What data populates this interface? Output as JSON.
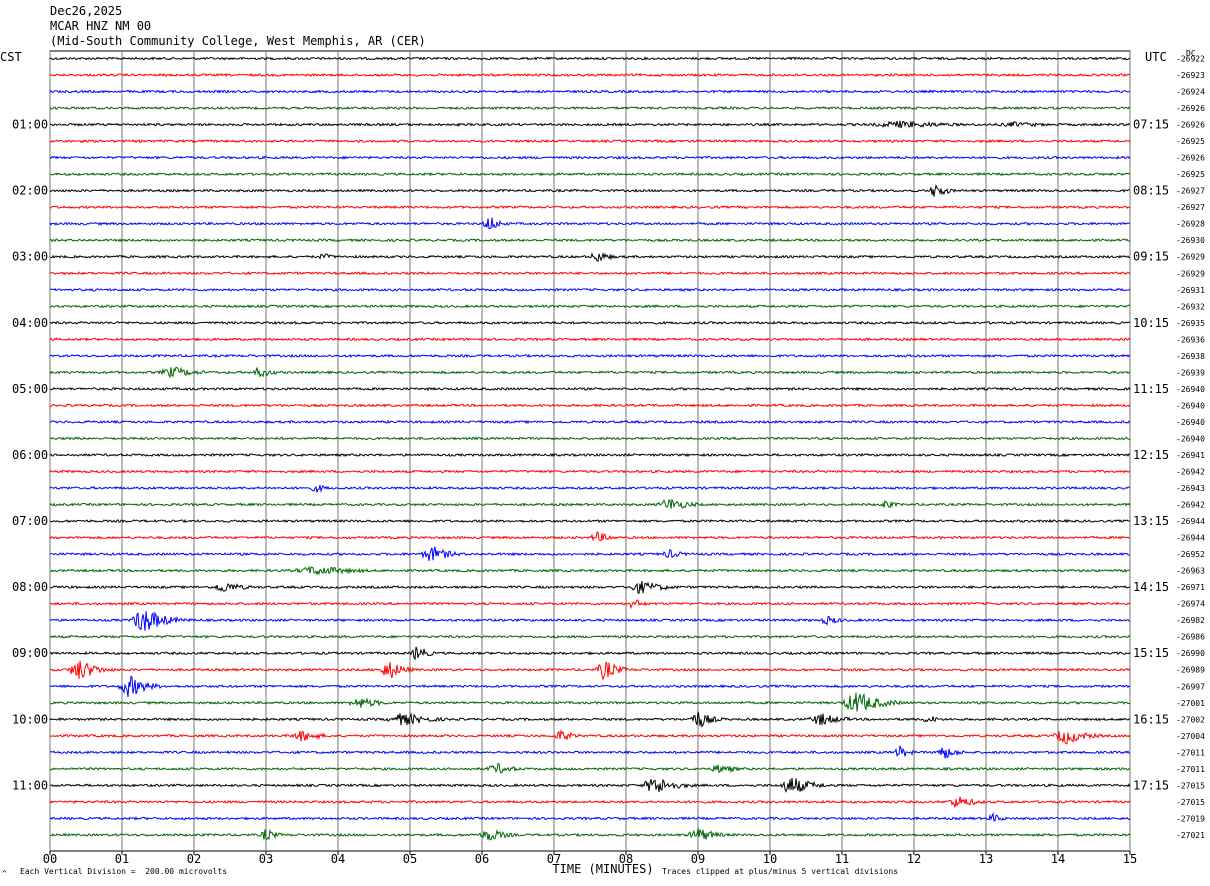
{
  "header": {
    "date": "Dec26,2025",
    "station": "MCAR HNZ NM 00",
    "location": "(Mid-South Community College, West Memphis, AR (CER)"
  },
  "left_label": "CST",
  "right_label": "UTC",
  "dc_label": "DC",
  "footer": {
    "scale_note": "Each Vertical Division =  200.00 microvolts",
    "clip_note": "Traces clipped at plus/minus 5 vertical divisions",
    "corner_mark": "^"
  },
  "chart_data": {
    "type": "line",
    "title": "",
    "xlabel": "TIME (MINUTES)",
    "ylabel": "",
    "xlim": [
      0,
      15
    ],
    "x_ticks": [
      "00",
      "01",
      "02",
      "03",
      "04",
      "05",
      "06",
      "07",
      "08",
      "09",
      "10",
      "11",
      "12",
      "13",
      "14",
      "15"
    ],
    "trace_colors": [
      "#000000",
      "#ff0000",
      "#0000ff",
      "#006600"
    ],
    "left_time_labels": [
      {
        "trace": 4,
        "label": "01:00"
      },
      {
        "trace": 8,
        "label": "02:00"
      },
      {
        "trace": 12,
        "label": "03:00"
      },
      {
        "trace": 16,
        "label": "04:00"
      },
      {
        "trace": 20,
        "label": "05:00"
      },
      {
        "trace": 24,
        "label": "06:00"
      },
      {
        "trace": 28,
        "label": "07:00"
      },
      {
        "trace": 32,
        "label": "08:00"
      },
      {
        "trace": 36,
        "label": "09:00"
      },
      {
        "trace": 40,
        "label": "10:00"
      },
      {
        "trace": 44,
        "label": "11:00"
      }
    ],
    "right_time_labels": [
      {
        "trace": 4,
        "label": "07:15"
      },
      {
        "trace": 8,
        "label": "08:15"
      },
      {
        "trace": 12,
        "label": "09:15"
      },
      {
        "trace": 16,
        "label": "10:15"
      },
      {
        "trace": 20,
        "label": "11:15"
      },
      {
        "trace": 24,
        "label": "12:15"
      },
      {
        "trace": 28,
        "label": "13:15"
      },
      {
        "trace": 32,
        "label": "14:15"
      },
      {
        "trace": 36,
        "label": "15:15"
      },
      {
        "trace": 40,
        "label": "16:15"
      },
      {
        "trace": 44,
        "label": "17:15"
      }
    ],
    "dc_offsets": [
      "-26922",
      "-26923",
      "-26924",
      "-26926",
      "-26926",
      "-26925",
      "-26926",
      "-26925",
      "-26927",
      "-26927",
      "-26928",
      "-26930",
      "-26929",
      "-26929",
      "-26931",
      "-26932",
      "-26935",
      "-26936",
      "-26938",
      "-26939",
      "-26940",
      "-26940",
      "-26940",
      "-26940",
      "-26941",
      "-26942",
      "-26943",
      "-26942",
      "-26944",
      "-26944",
      "-26952",
      "-26963",
      "-26971",
      "-26974",
      "-26982",
      "-26986",
      "-26990",
      "-26989",
      "-26997",
      "-27001",
      "-27002",
      "-27004",
      "-27011",
      "-27011",
      "-27015",
      "-27015",
      "-27019",
      "-27021"
    ],
    "events": [
      {
        "trace": 4,
        "minute": 11.8,
        "amp": 4,
        "dur": 1.6
      },
      {
        "trace": 4,
        "minute": 13.4,
        "amp": 3,
        "dur": 1.0
      },
      {
        "trace": 8,
        "minute": 12.3,
        "amp": 9,
        "dur": 0.3
      },
      {
        "trace": 10,
        "minute": 6.1,
        "amp": 9,
        "dur": 0.3
      },
      {
        "trace": 12,
        "minute": 3.8,
        "amp": 4,
        "dur": 0.3
      },
      {
        "trace": 12,
        "minute": 7.6,
        "amp": 6,
        "dur": 0.4
      },
      {
        "trace": 19,
        "minute": 1.7,
        "amp": 6,
        "dur": 0.7
      },
      {
        "trace": 19,
        "minute": 2.9,
        "amp": 6,
        "dur": 0.4
      },
      {
        "trace": 26,
        "minute": 3.7,
        "amp": 5,
        "dur": 0.3
      },
      {
        "trace": 27,
        "minute": 8.6,
        "amp": 7,
        "dur": 0.6
      },
      {
        "trace": 27,
        "minute": 11.6,
        "amp": 5,
        "dur": 0.3
      },
      {
        "trace": 29,
        "minute": 7.6,
        "amp": 6,
        "dur": 0.4
      },
      {
        "trace": 30,
        "minute": 5.3,
        "amp": 9,
        "dur": 0.5
      },
      {
        "trace": 30,
        "minute": 8.6,
        "amp": 5,
        "dur": 0.4
      },
      {
        "trace": 31,
        "minute": 3.7,
        "amp": 5,
        "dur": 1.2
      },
      {
        "trace": 32,
        "minute": 2.4,
        "amp": 6,
        "dur": 0.6
      },
      {
        "trace": 32,
        "minute": 8.2,
        "amp": 7,
        "dur": 0.7
      },
      {
        "trace": 33,
        "minute": 8.1,
        "amp": 6,
        "dur": 0.3
      },
      {
        "trace": 34,
        "minute": 1.3,
        "amp": 14,
        "dur": 0.6
      },
      {
        "trace": 34,
        "minute": 10.8,
        "amp": 5,
        "dur": 0.4
      },
      {
        "trace": 36,
        "minute": 5.1,
        "amp": 9,
        "dur": 0.3
      },
      {
        "trace": 37,
        "minute": 0.4,
        "amp": 12,
        "dur": 0.5
      },
      {
        "trace": 37,
        "minute": 4.7,
        "amp": 11,
        "dur": 0.4
      },
      {
        "trace": 37,
        "minute": 7.7,
        "amp": 11,
        "dur": 0.4
      },
      {
        "trace": 38,
        "minute": 1.1,
        "amp": 12,
        "dur": 0.5
      },
      {
        "trace": 39,
        "minute": 4.3,
        "amp": 6,
        "dur": 0.6
      },
      {
        "trace": 39,
        "minute": 11.2,
        "amp": 12,
        "dur": 0.7
      },
      {
        "trace": 40,
        "minute": 4.9,
        "amp": 7,
        "dur": 0.8
      },
      {
        "trace": 40,
        "minute": 9.0,
        "amp": 10,
        "dur": 0.4
      },
      {
        "trace": 40,
        "minute": 10.7,
        "amp": 7,
        "dur": 0.6
      },
      {
        "trace": 40,
        "minute": 12.2,
        "amp": 5,
        "dur": 0.3
      },
      {
        "trace": 41,
        "minute": 3.5,
        "amp": 6,
        "dur": 0.6
      },
      {
        "trace": 41,
        "minute": 7.1,
        "amp": 6,
        "dur": 0.4
      },
      {
        "trace": 41,
        "minute": 14.1,
        "amp": 9,
        "dur": 0.6
      },
      {
        "trace": 42,
        "minute": 11.8,
        "amp": 7,
        "dur": 0.3
      },
      {
        "trace": 42,
        "minute": 12.4,
        "amp": 8,
        "dur": 0.4
      },
      {
        "trace": 43,
        "minute": 6.2,
        "amp": 6,
        "dur": 0.5
      },
      {
        "trace": 43,
        "minute": 9.3,
        "amp": 5,
        "dur": 0.5
      },
      {
        "trace": 44,
        "minute": 8.4,
        "amp": 10,
        "dur": 0.6
      },
      {
        "trace": 44,
        "minute": 10.3,
        "amp": 10,
        "dur": 0.6
      },
      {
        "trace": 45,
        "minute": 12.6,
        "amp": 7,
        "dur": 0.5
      },
      {
        "trace": 46,
        "minute": 13.1,
        "amp": 5,
        "dur": 0.3
      },
      {
        "trace": 47,
        "minute": 3.0,
        "amp": 7,
        "dur": 0.3
      },
      {
        "trace": 47,
        "minute": 6.1,
        "amp": 7,
        "dur": 0.5
      },
      {
        "trace": 47,
        "minute": 9.0,
        "amp": 8,
        "dur": 0.5
      }
    ]
  }
}
